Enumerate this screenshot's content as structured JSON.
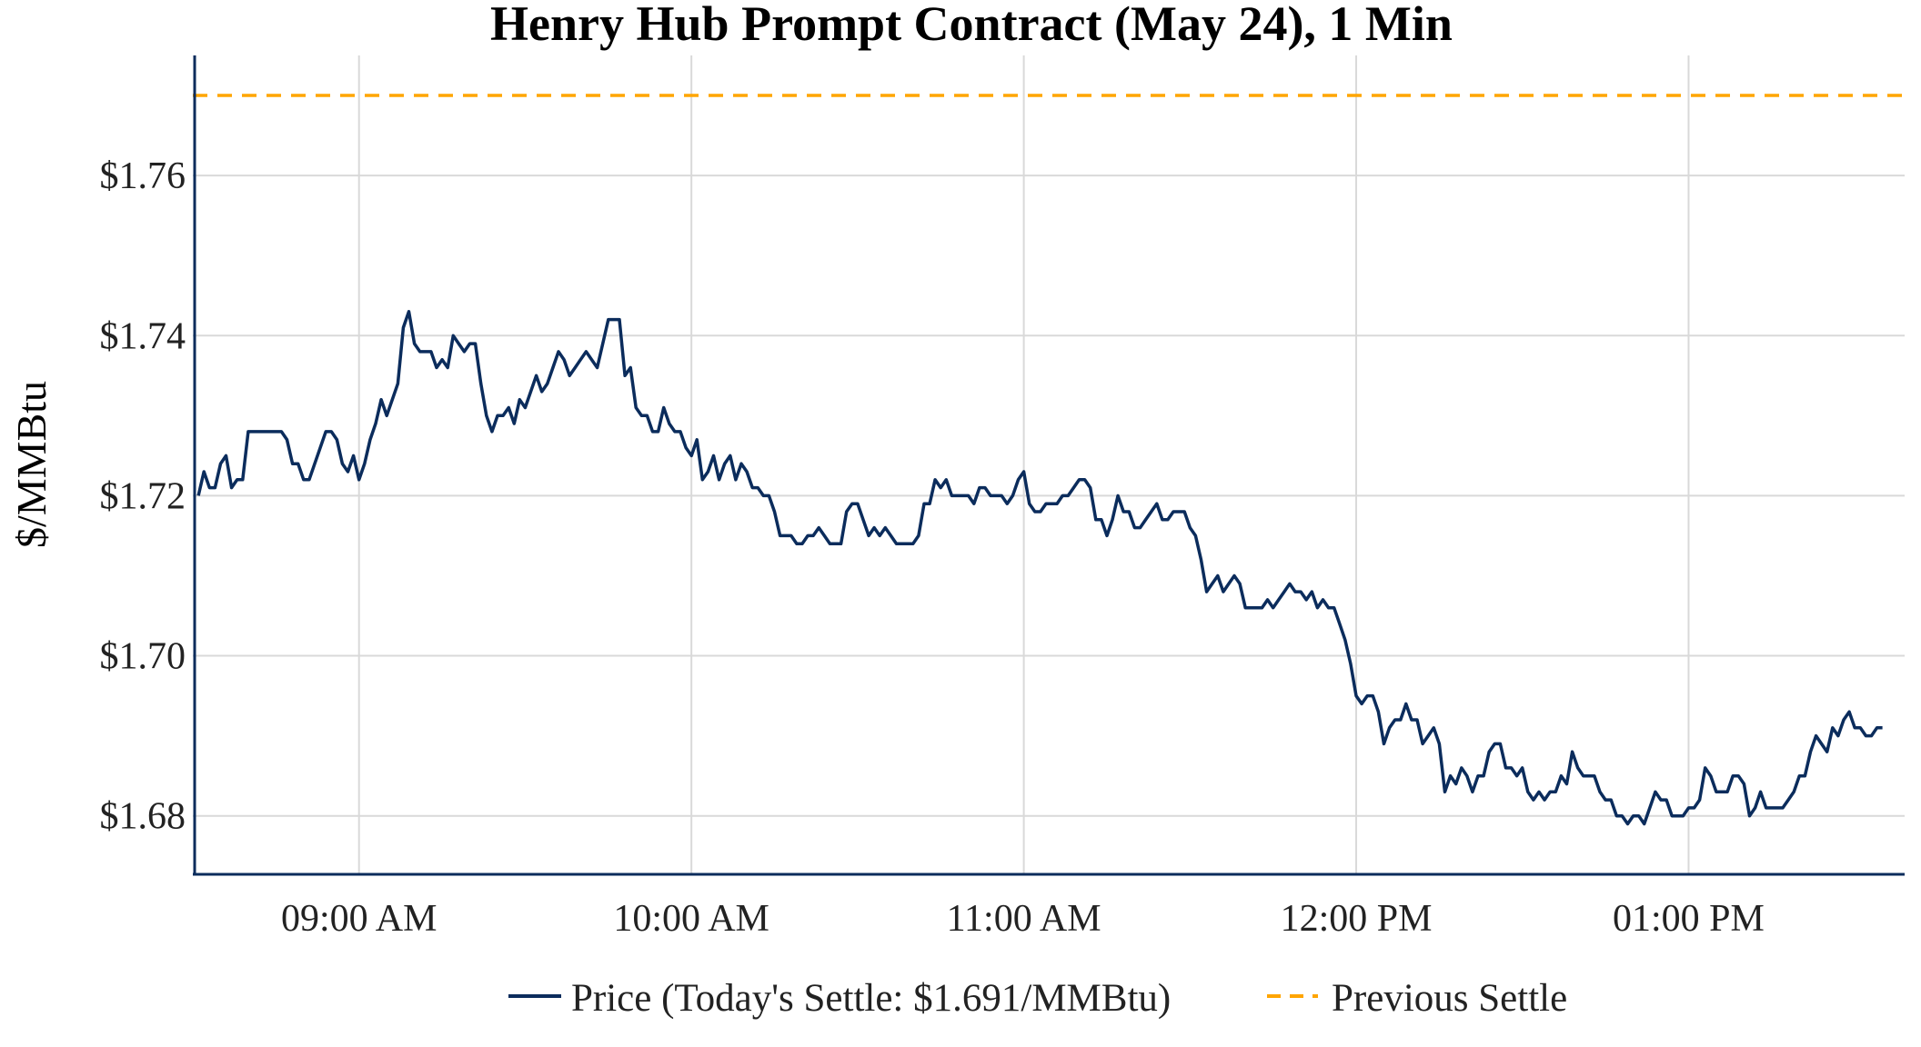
{
  "chart_data": {
    "type": "line",
    "title": "Henry Hub Prompt Contract (May 24), 1 Min",
    "xlabel": "",
    "ylabel": "$/MMBtu",
    "x_range": [
      "08:30",
      "13:39"
    ],
    "y_range": [
      1.6727,
      1.775
    ],
    "grid": true,
    "legend_placement": "bottom-center",
    "x_ticks": [
      {
        "value": "09:00",
        "label": "09:00 AM"
      },
      {
        "value": "10:00",
        "label": "10:00 AM"
      },
      {
        "value": "11:00",
        "label": "11:00 AM"
      },
      {
        "value": "12:00",
        "label": "12:00 PM"
      },
      {
        "value": "13:00",
        "label": "01:00 PM"
      }
    ],
    "y_ticks": [
      {
        "value": 1.68,
        "label": "$1.68"
      },
      {
        "value": 1.7,
        "label": "$1.70"
      },
      {
        "value": 1.72,
        "label": "$1.72"
      },
      {
        "value": 1.74,
        "label": "$1.74"
      },
      {
        "value": 1.76,
        "label": "$1.76"
      }
    ],
    "series": [
      {
        "name": "Price (Today's Settle: $1.691/MMBtu)",
        "color": "#0b2c5c",
        "style": "solid",
        "x": [
          "08:31",
          "08:32",
          "08:33",
          "08:34",
          "08:35",
          "08:36",
          "08:37",
          "08:38",
          "08:39",
          "08:40",
          "08:41",
          "08:42",
          "08:43",
          "08:44",
          "08:45",
          "08:46",
          "08:47",
          "08:48",
          "08:49",
          "08:50",
          "08:51",
          "08:52",
          "08:53",
          "08:54",
          "08:55",
          "08:56",
          "08:57",
          "08:58",
          "08:59",
          "09:00",
          "09:01",
          "09:02",
          "09:03",
          "09:04",
          "09:05",
          "09:06",
          "09:07",
          "09:08",
          "09:09",
          "09:10",
          "09:11",
          "09:12",
          "09:13",
          "09:14",
          "09:15",
          "09:16",
          "09:17",
          "09:18",
          "09:19",
          "09:20",
          "09:21",
          "09:22",
          "09:23",
          "09:24",
          "09:25",
          "09:26",
          "09:27",
          "09:28",
          "09:29",
          "09:30",
          "09:31",
          "09:32",
          "09:33",
          "09:34",
          "09:35",
          "09:36",
          "09:37",
          "09:38",
          "09:39",
          "09:40",
          "09:41",
          "09:42",
          "09:43",
          "09:44",
          "09:45",
          "09:46",
          "09:47",
          "09:48",
          "09:49",
          "09:50",
          "09:51",
          "09:52",
          "09:53",
          "09:54",
          "09:55",
          "09:56",
          "09:57",
          "09:58",
          "09:59",
          "10:00",
          "10:01",
          "10:02",
          "10:03",
          "10:04",
          "10:05",
          "10:06",
          "10:07",
          "10:08",
          "10:09",
          "10:10",
          "10:11",
          "10:12",
          "10:13",
          "10:14",
          "10:15",
          "10:16",
          "10:17",
          "10:18",
          "10:19",
          "10:20",
          "10:21",
          "10:22",
          "10:23",
          "10:24",
          "10:25",
          "10:26",
          "10:27",
          "10:28",
          "10:29",
          "10:30",
          "10:31",
          "10:32",
          "10:33",
          "10:34",
          "10:35",
          "10:36",
          "10:37",
          "10:38",
          "10:39",
          "10:40",
          "10:41",
          "10:42",
          "10:43",
          "10:44",
          "10:45",
          "10:46",
          "10:47",
          "10:48",
          "10:49",
          "10:50",
          "10:51",
          "10:52",
          "10:53",
          "10:54",
          "10:55",
          "10:56",
          "10:57",
          "10:58",
          "10:59",
          "11:00",
          "11:01",
          "11:02",
          "11:03",
          "11:04",
          "11:05",
          "11:06",
          "11:07",
          "11:08",
          "11:09",
          "11:10",
          "11:11",
          "11:12",
          "11:13",
          "11:14",
          "11:15",
          "11:16",
          "11:17",
          "11:18",
          "11:19",
          "11:20",
          "11:21",
          "11:22",
          "11:23",
          "11:24",
          "11:25",
          "11:26",
          "11:27",
          "11:28",
          "11:29",
          "11:30",
          "11:31",
          "11:32",
          "11:33",
          "11:34",
          "11:35",
          "11:36",
          "11:37",
          "11:38",
          "11:39",
          "11:40",
          "11:41",
          "11:42",
          "11:43",
          "11:44",
          "11:45",
          "11:46",
          "11:47",
          "11:48",
          "11:49",
          "11:50",
          "11:51",
          "11:52",
          "11:53",
          "11:54",
          "11:55",
          "11:56",
          "11:57",
          "11:58",
          "11:59",
          "12:00",
          "12:01",
          "12:02",
          "12:03",
          "12:04",
          "12:05",
          "12:06",
          "12:07",
          "12:08",
          "12:09",
          "12:10",
          "12:11",
          "12:12",
          "12:13",
          "12:14",
          "12:15",
          "12:16",
          "12:17",
          "12:18",
          "12:19",
          "12:20",
          "12:21",
          "12:22",
          "12:23",
          "12:24",
          "12:25",
          "12:26",
          "12:27",
          "12:28",
          "12:29",
          "12:30",
          "12:31",
          "12:32",
          "12:33",
          "12:34",
          "12:35",
          "12:36",
          "12:37",
          "12:38",
          "12:39",
          "12:40",
          "12:41",
          "12:42",
          "12:43",
          "12:44",
          "12:45",
          "12:46",
          "12:47",
          "12:48",
          "12:49",
          "12:50",
          "12:51",
          "12:52",
          "12:53",
          "12:54",
          "12:55",
          "12:56",
          "12:57",
          "12:58",
          "12:59",
          "13:00",
          "13:01",
          "13:02",
          "13:03",
          "13:04",
          "13:05",
          "13:06",
          "13:07",
          "13:08",
          "13:09",
          "13:10",
          "13:11",
          "13:12",
          "13:13",
          "13:14",
          "13:15",
          "13:16",
          "13:17",
          "13:18",
          "13:19",
          "13:20",
          "13:21",
          "13:22",
          "13:23",
          "13:24",
          "13:25",
          "13:26",
          "13:27",
          "13:28",
          "13:29",
          "13:30",
          "13:31",
          "13:32",
          "13:33",
          "13:34",
          "13:35"
        ],
        "values": [
          1.72,
          1.723,
          1.721,
          1.721,
          1.724,
          1.725,
          1.721,
          1.722,
          1.722,
          1.728,
          1.728,
          1.728,
          1.728,
          1.728,
          1.728,
          1.728,
          1.727,
          1.724,
          1.724,
          1.722,
          1.722,
          1.724,
          1.726,
          1.728,
          1.728,
          1.727,
          1.724,
          1.723,
          1.725,
          1.722,
          1.724,
          1.727,
          1.729,
          1.732,
          1.73,
          1.732,
          1.734,
          1.741,
          1.743,
          1.739,
          1.738,
          1.738,
          1.738,
          1.736,
          1.737,
          1.736,
          1.74,
          1.739,
          1.738,
          1.739,
          1.739,
          1.734,
          1.73,
          1.728,
          1.73,
          1.73,
          1.731,
          1.729,
          1.732,
          1.731,
          1.733,
          1.735,
          1.733,
          1.734,
          1.736,
          1.738,
          1.737,
          1.735,
          1.736,
          1.737,
          1.738,
          1.737,
          1.736,
          1.739,
          1.742,
          1.742,
          1.742,
          1.735,
          1.736,
          1.731,
          1.73,
          1.73,
          1.728,
          1.728,
          1.731,
          1.729,
          1.728,
          1.728,
          1.726,
          1.725,
          1.727,
          1.722,
          1.723,
          1.725,
          1.722,
          1.724,
          1.725,
          1.722,
          1.724,
          1.723,
          1.721,
          1.721,
          1.72,
          1.72,
          1.718,
          1.715,
          1.715,
          1.715,
          1.714,
          1.714,
          1.715,
          1.715,
          1.716,
          1.715,
          1.714,
          1.714,
          1.714,
          1.718,
          1.719,
          1.719,
          1.717,
          1.715,
          1.716,
          1.715,
          1.716,
          1.715,
          1.714,
          1.714,
          1.714,
          1.714,
          1.715,
          1.719,
          1.719,
          1.722,
          1.721,
          1.722,
          1.72,
          1.72,
          1.72,
          1.72,
          1.719,
          1.721,
          1.721,
          1.72,
          1.72,
          1.72,
          1.719,
          1.72,
          1.722,
          1.723,
          1.719,
          1.718,
          1.718,
          1.719,
          1.719,
          1.719,
          1.72,
          1.72,
          1.721,
          1.722,
          1.722,
          1.721,
          1.717,
          1.717,
          1.715,
          1.717,
          1.72,
          1.718,
          1.718,
          1.716,
          1.716,
          1.717,
          1.718,
          1.719,
          1.717,
          1.717,
          1.718,
          1.718,
          1.718,
          1.716,
          1.715,
          1.712,
          1.708,
          1.709,
          1.71,
          1.708,
          1.709,
          1.71,
          1.709,
          1.706,
          1.706,
          1.706,
          1.706,
          1.707,
          1.706,
          1.707,
          1.708,
          1.709,
          1.708,
          1.708,
          1.707,
          1.708,
          1.706,
          1.707,
          1.706,
          1.706,
          1.704,
          1.702,
          1.699,
          1.695,
          1.694,
          1.695,
          1.695,
          1.693,
          1.689,
          1.691,
          1.692,
          1.692,
          1.694,
          1.692,
          1.692,
          1.689,
          1.69,
          1.691,
          1.689,
          1.683,
          1.685,
          1.684,
          1.686,
          1.685,
          1.683,
          1.685,
          1.685,
          1.688,
          1.689,
          1.689,
          1.686,
          1.686,
          1.685,
          1.686,
          1.683,
          1.682,
          1.683,
          1.682,
          1.683,
          1.683,
          1.685,
          1.684,
          1.688,
          1.686,
          1.685,
          1.685,
          1.685,
          1.683,
          1.682,
          1.682,
          1.68,
          1.68,
          1.679,
          1.68,
          1.68,
          1.679,
          1.681,
          1.683,
          1.682,
          1.682,
          1.68,
          1.68,
          1.68,
          1.681,
          1.681,
          1.682,
          1.686,
          1.685,
          1.683,
          1.683,
          1.683,
          1.685,
          1.685,
          1.684,
          1.68,
          1.681,
          1.683,
          1.681,
          1.681,
          1.681,
          1.681,
          1.682,
          1.683,
          1.685,
          1.685,
          1.688,
          1.69,
          1.689,
          1.688,
          1.691,
          1.69,
          1.692,
          1.693,
          1.691,
          1.691,
          1.69,
          1.69,
          1.691,
          1.691
        ]
      },
      {
        "name": "Previous Settle",
        "color": "#ffa500",
        "style": "dashed",
        "value": 1.77
      }
    ]
  }
}
